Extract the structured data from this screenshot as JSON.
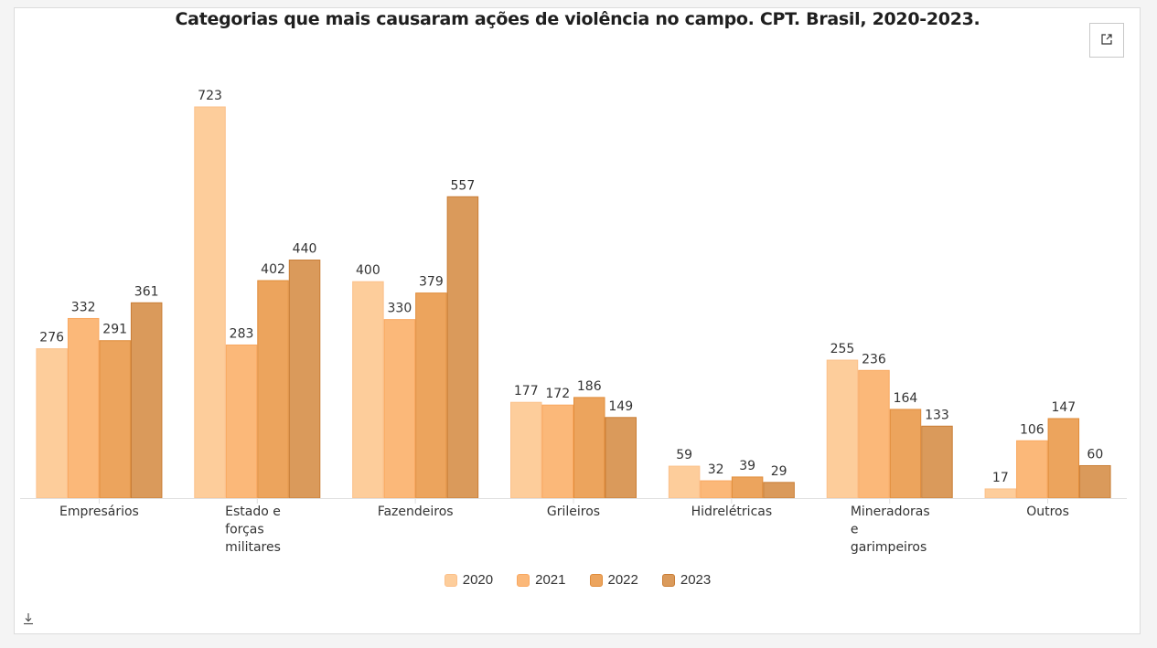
{
  "expand_icon": "external-link-icon",
  "download_icon": "download-icon",
  "chart_data": {
    "type": "bar",
    "title": "Categorias que mais causaram ações de violência no campo. CPT. Brasil, 2020-2023.",
    "xlabel": "",
    "ylabel": "",
    "ylim": [
      0,
      723
    ],
    "grid": false,
    "legend_position": "bottom-center",
    "categories": [
      [
        "Empresários"
      ],
      [
        "Estado e",
        "forças",
        "militares"
      ],
      [
        "Fazendeiros"
      ],
      [
        "Grileiros"
      ],
      [
        "Hidrelétricas"
      ],
      [
        "Mineradoras",
        "e",
        "garimpeiros"
      ],
      [
        "Outros"
      ]
    ],
    "series": [
      {
        "name": "2020",
        "color": "#fdcd9b",
        "stroke": "#fbc08a",
        "values": [
          276,
          723,
          400,
          177,
          59,
          255,
          17
        ]
      },
      {
        "name": "2021",
        "color": "#fbb879",
        "stroke": "#f9a860",
        "values": [
          332,
          283,
          330,
          172,
          32,
          236,
          106
        ]
      },
      {
        "name": "2022",
        "color": "#eca45d",
        "stroke": "#e08c3a",
        "values": [
          291,
          402,
          379,
          186,
          39,
          164,
          147
        ]
      },
      {
        "name": "2023",
        "color": "#da9a5b",
        "stroke": "#c97d35",
        "values": [
          361,
          440,
          557,
          149,
          29,
          133,
          60
        ]
      }
    ]
  }
}
